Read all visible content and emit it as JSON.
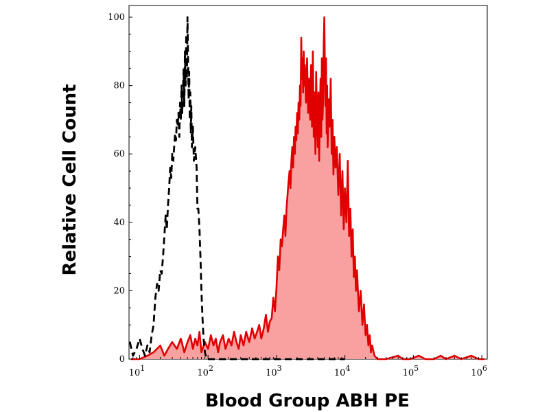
{
  "chart_data": {
    "type": "area",
    "title": "",
    "xlabel": "Blood Group ABH PE",
    "ylabel": "Relative Cell Count",
    "x_scale": "log",
    "xlim": [
      7,
      1200000
    ],
    "ylim": [
      0,
      100
    ],
    "grid": false,
    "legend": "none",
    "y_ticks": [
      0,
      20,
      40,
      60,
      80,
      100
    ],
    "y_tick_labels": [
      "0",
      "20",
      "40",
      "60",
      "80",
      "100"
    ],
    "x_ticks": [
      10,
      100,
      1000,
      10000,
      100000,
      1000000
    ],
    "x_tick_labels": [
      {
        "base": "10",
        "exp": "1"
      },
      {
        "base": "10",
        "exp": "2"
      },
      {
        "base": "10",
        "exp": "3"
      },
      {
        "base": "10",
        "exp": "4"
      },
      {
        "base": "10",
        "exp": "5"
      },
      {
        "base": "10",
        "exp": "6"
      }
    ],
    "series": [
      {
        "style": "dashed-black",
        "color": "#000000",
        "points": [
          [
            7.2,
            5
          ],
          [
            8,
            1
          ],
          [
            9,
            3
          ],
          [
            10,
            6
          ],
          [
            11,
            3
          ],
          [
            12,
            1
          ],
          [
            13,
            4
          ],
          [
            14,
            2
          ],
          [
            15,
            7
          ],
          [
            16,
            10
          ],
          [
            17,
            18
          ],
          [
            18,
            22
          ],
          [
            19,
            20
          ],
          [
            20,
            26
          ],
          [
            21,
            25
          ],
          [
            22,
            30
          ],
          [
            23,
            36
          ],
          [
            24,
            42
          ],
          [
            25,
            38
          ],
          [
            26,
            45
          ],
          [
            27,
            50
          ],
          [
            28,
            56
          ],
          [
            29,
            53
          ],
          [
            30,
            60
          ],
          [
            31,
            58
          ],
          [
            32,
            62
          ],
          [
            33,
            66
          ],
          [
            34,
            64
          ],
          [
            35,
            70
          ],
          [
            36,
            68
          ],
          [
            37,
            72
          ],
          [
            38,
            65
          ],
          [
            39,
            75
          ],
          [
            40,
            70
          ],
          [
            41,
            80
          ],
          [
            42,
            72
          ],
          [
            43,
            78
          ],
          [
            44,
            85
          ],
          [
            45,
            74
          ],
          [
            46,
            90
          ],
          [
            47,
            80
          ],
          [
            48,
            95
          ],
          [
            49,
            82
          ],
          [
            50,
            100
          ],
          [
            51,
            88
          ],
          [
            52,
            76
          ],
          [
            53,
            84
          ],
          [
            54,
            70
          ],
          [
            55,
            78
          ],
          [
            56,
            66
          ],
          [
            57,
            74
          ],
          [
            58,
            62
          ],
          [
            60,
            68
          ],
          [
            62,
            58
          ],
          [
            65,
            62
          ],
          [
            68,
            56
          ],
          [
            70,
            44
          ],
          [
            72,
            44
          ],
          [
            75,
            38
          ],
          [
            78,
            28
          ],
          [
            80,
            20
          ],
          [
            83,
            12
          ],
          [
            86,
            6
          ],
          [
            90,
            2
          ],
          [
            95,
            0
          ],
          [
            110,
            0
          ],
          [
            150,
            0
          ],
          [
            200,
            0
          ],
          [
            1000,
            0
          ],
          [
            10000,
            0
          ]
        ]
      },
      {
        "style": "filled-red",
        "color": "#e00000",
        "fill": "#f9a0a0",
        "points": [
          [
            7.5,
            0
          ],
          [
            10,
            0
          ],
          [
            13,
            1
          ],
          [
            16,
            2
          ],
          [
            20,
            4
          ],
          [
            23,
            1
          ],
          [
            26,
            3
          ],
          [
            30,
            5
          ],
          [
            35,
            3
          ],
          [
            40,
            6
          ],
          [
            45,
            2
          ],
          [
            50,
            5
          ],
          [
            55,
            7
          ],
          [
            60,
            3
          ],
          [
            65,
            6
          ],
          [
            70,
            4
          ],
          [
            75,
            8
          ],
          [
            80,
            2
          ],
          [
            90,
            5
          ],
          [
            100,
            3
          ],
          [
            110,
            7
          ],
          [
            120,
            4
          ],
          [
            130,
            6
          ],
          [
            140,
            2
          ],
          [
            150,
            5
          ],
          [
            165,
            7
          ],
          [
            180,
            3
          ],
          [
            200,
            6
          ],
          [
            220,
            4
          ],
          [
            240,
            8
          ],
          [
            260,
            5
          ],
          [
            280,
            3
          ],
          [
            300,
            7
          ],
          [
            330,
            4
          ],
          [
            360,
            8
          ],
          [
            400,
            5
          ],
          [
            440,
            9
          ],
          [
            480,
            6
          ],
          [
            520,
            8
          ],
          [
            560,
            10
          ],
          [
            600,
            6
          ],
          [
            650,
            9
          ],
          [
            700,
            13
          ],
          [
            750,
            8
          ],
          [
            800,
            11
          ],
          [
            850,
            12
          ],
          [
            900,
            18
          ],
          [
            950,
            14
          ],
          [
            1000,
            21
          ],
          [
            1050,
            30
          ],
          [
            1100,
            26
          ],
          [
            1150,
            35
          ],
          [
            1200,
            33
          ],
          [
            1250,
            38
          ],
          [
            1300,
            42
          ],
          [
            1350,
            36
          ],
          [
            1400,
            44
          ],
          [
            1450,
            48
          ],
          [
            1500,
            52
          ],
          [
            1550,
            55
          ],
          [
            1600,
            50
          ],
          [
            1650,
            58
          ],
          [
            1700,
            62
          ],
          [
            1750,
            56
          ],
          [
            1800,
            65
          ],
          [
            1850,
            60
          ],
          [
            1900,
            68
          ],
          [
            1950,
            64
          ],
          [
            2000,
            72
          ],
          [
            2050,
            66
          ],
          [
            2100,
            75
          ],
          [
            2150,
            70
          ],
          [
            2200,
            80
          ],
          [
            2250,
            74
          ],
          [
            2300,
            94
          ],
          [
            2350,
            82
          ],
          [
            2400,
            88
          ],
          [
            2450,
            78
          ],
          [
            2500,
            90
          ],
          [
            2550,
            80
          ],
          [
            2600,
            86
          ],
          [
            2700,
            75
          ],
          [
            2800,
            88
          ],
          [
            2900,
            72
          ],
          [
            3000,
            82
          ],
          [
            3100,
            70
          ],
          [
            3200,
            86
          ],
          [
            3300,
            68
          ],
          [
            3400,
            90
          ],
          [
            3500,
            65
          ],
          [
            3600,
            78
          ],
          [
            3700,
            60
          ],
          [
            3800,
            84
          ],
          [
            3900,
            70
          ],
          [
            4000,
            62
          ],
          [
            4100,
            78
          ],
          [
            4200,
            58
          ],
          [
            4300,
            72
          ],
          [
            4400,
            82
          ],
          [
            4500,
            65
          ],
          [
            4600,
            88
          ],
          [
            4700,
            70
          ],
          [
            4800,
            76
          ],
          [
            4900,
            92
          ],
          [
            5000,
            100
          ],
          [
            5100,
            84
          ],
          [
            5200,
            74
          ],
          [
            5300,
            88
          ],
          [
            5400,
            66
          ],
          [
            5500,
            80
          ],
          [
            5600,
            62
          ],
          [
            5800,
            76
          ],
          [
            6000,
            68
          ],
          [
            6200,
            82
          ],
          [
            6400,
            60
          ],
          [
            6600,
            70
          ],
          [
            6800,
            54
          ],
          [
            7000,
            65
          ],
          [
            7300,
            56
          ],
          [
            7600,
            62
          ],
          [
            8000,
            48
          ],
          [
            8400,
            60
          ],
          [
            8800,
            42
          ],
          [
            9200,
            55
          ],
          [
            9600,
            38
          ],
          [
            10000,
            50
          ],
          [
            10500,
            40
          ],
          [
            11000,
            58
          ],
          [
            11500,
            36
          ],
          [
            12000,
            44
          ],
          [
            12500,
            30
          ],
          [
            13000,
            38
          ],
          [
            13500,
            24
          ],
          [
            14000,
            30
          ],
          [
            14500,
            20
          ],
          [
            15000,
            26
          ],
          [
            16000,
            14
          ],
          [
            17000,
            20
          ],
          [
            18000,
            10
          ],
          [
            19000,
            16
          ],
          [
            20000,
            7
          ],
          [
            21000,
            10
          ],
          [
            22000,
            4
          ],
          [
            23000,
            7
          ],
          [
            24000,
            2
          ],
          [
            25000,
            4
          ],
          [
            27000,
            1
          ],
          [
            30000,
            0
          ],
          [
            40000,
            0
          ],
          [
            60000,
            1
          ],
          [
            70000,
            0
          ],
          [
            90000,
            0
          ],
          [
            120000,
            1
          ],
          [
            150000,
            0
          ],
          [
            200000,
            0
          ],
          [
            250000,
            1
          ],
          [
            300000,
            0
          ],
          [
            400000,
            1
          ],
          [
            500000,
            0
          ],
          [
            700000,
            1
          ],
          [
            900000,
            0
          ],
          [
            1100000,
            0
          ]
        ]
      }
    ]
  }
}
